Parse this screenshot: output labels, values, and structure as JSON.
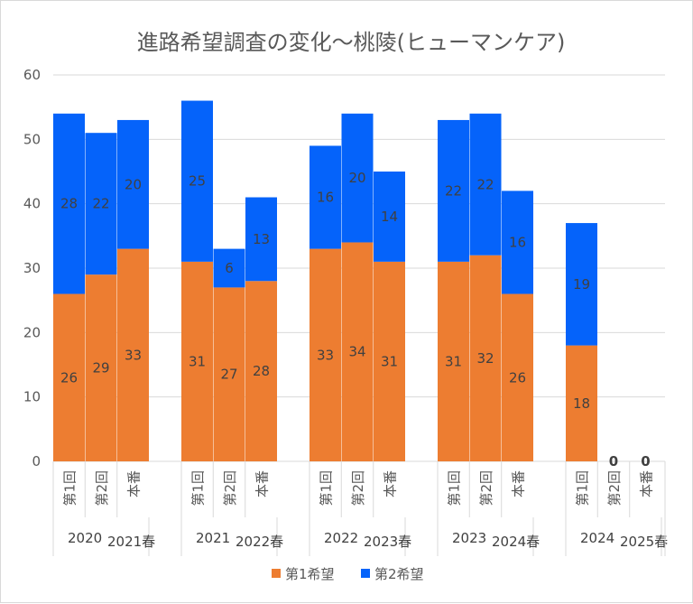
{
  "chart_data": {
    "type": "bar",
    "stacked": true,
    "title": "進路希望調査の変化～桃陵(ヒューマンケア)",
    "ylim": [
      0,
      60
    ],
    "yticks": [
      0,
      10,
      20,
      30,
      40,
      50,
      60
    ],
    "grid": true,
    "legend": "bottom",
    "groups": [
      {
        "label1": "2020",
        "label2": "2021春",
        "categories": [
          "第1回",
          "第2回",
          "本番"
        ]
      },
      {
        "label1": "2021",
        "label2": "2022春",
        "categories": [
          "第1回",
          "第2回",
          "本番"
        ]
      },
      {
        "label1": "2022",
        "label2": "2023春",
        "categories": [
          "第1回",
          "第2回",
          "本番"
        ]
      },
      {
        "label1": "2023",
        "label2": "2024春",
        "categories": [
          "第1回",
          "第2回",
          "本番"
        ]
      },
      {
        "label1": "2024",
        "label2": "2025春",
        "categories": [
          "第1回",
          "第2回",
          "本番"
        ]
      }
    ],
    "series": [
      {
        "name": "第1希望",
        "color": "#ED7D31",
        "values": [
          26,
          29,
          33,
          31,
          27,
          28,
          33,
          34,
          31,
          31,
          32,
          26,
          18,
          0,
          0
        ]
      },
      {
        "name": "第2希望",
        "color": "#0563FA",
        "values": [
          28,
          22,
          20,
          25,
          6,
          13,
          16,
          20,
          14,
          22,
          22,
          16,
          19,
          0,
          0
        ]
      }
    ]
  }
}
